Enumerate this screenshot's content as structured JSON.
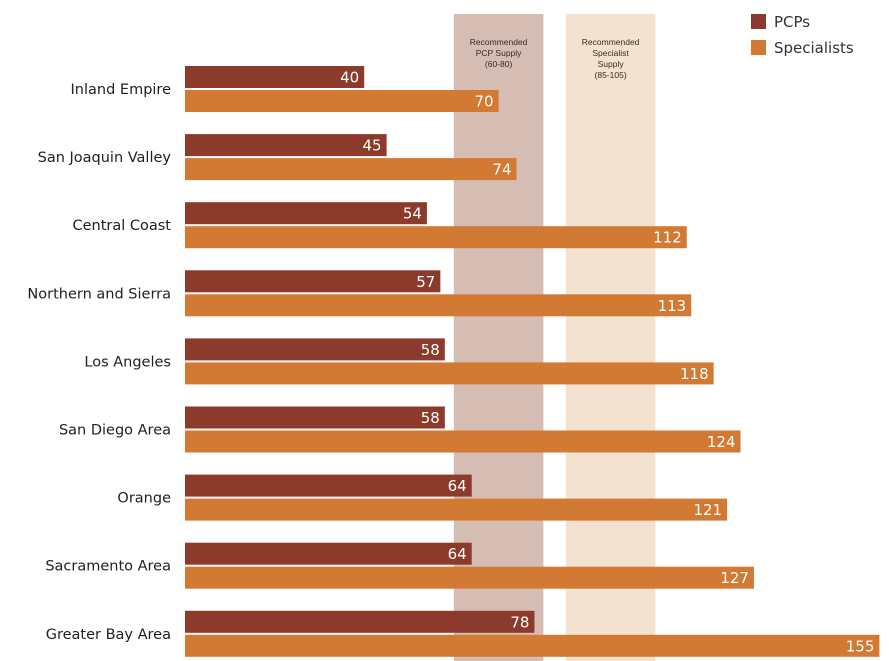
{
  "chart_data": {
    "type": "bar",
    "orientation": "horizontal",
    "categories": [
      "Inland Empire",
      "San Joaquin Valley",
      "Central Coast",
      "Northern and Sierra",
      "Los Angeles",
      "San Diego Area",
      "Orange",
      "Sacramento Area",
      "Greater Bay Area"
    ],
    "series": [
      {
        "name": "PCPs",
        "color": "#8b3a2b",
        "values": [
          40,
          45,
          54,
          57,
          58,
          58,
          64,
          64,
          78
        ]
      },
      {
        "name": "Specialists",
        "color": "#d27a34",
        "values": [
          70,
          74,
          112,
          113,
          118,
          124,
          121,
          127,
          155
        ]
      }
    ],
    "reference_bands": [
      {
        "lines": [
          "Recommended",
          "PCP Supply",
          "(60-80)"
        ],
        "range": [
          60,
          80
        ],
        "color": "#cfb2a6"
      },
      {
        "lines": [
          "Recommended",
          "Specialist",
          "Supply",
          "(85-105)"
        ],
        "range": [
          85,
          105
        ],
        "color": "#f2ddc8"
      }
    ],
    "legend_position": "top-right",
    "grid": false,
    "title": "",
    "xlabel": "",
    "ylabel": ""
  }
}
